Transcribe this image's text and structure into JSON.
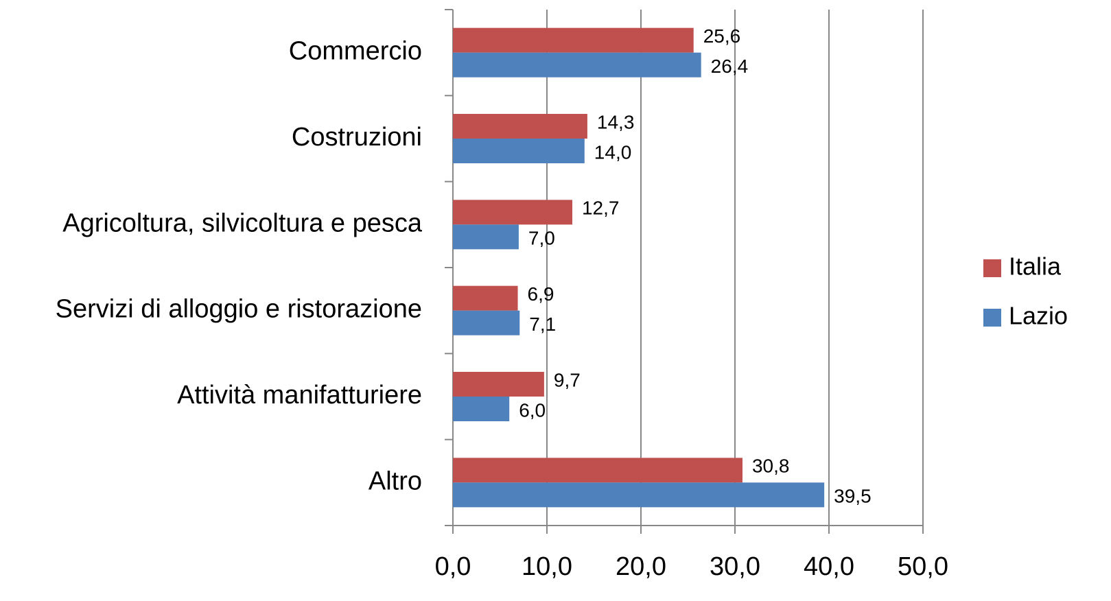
{
  "chart_data": {
    "type": "bar",
    "orientation": "horizontal",
    "categories": [
      "Commercio",
      "Costruzioni",
      "Agricoltura, silvicoltura e pesca",
      "Servizi di alloggio e ristorazione",
      "Attività manifatturiere",
      "Altro"
    ],
    "series": [
      {
        "name": "Italia",
        "color": "#c0504d",
        "values": [
          25.6,
          14.3,
          12.7,
          6.9,
          9.7,
          30.8
        ],
        "value_labels": [
          "25,6",
          "14,3",
          "12,7",
          "6,9",
          "9,7",
          "30,8"
        ]
      },
      {
        "name": "Lazio",
        "color": "#4f81bd",
        "values": [
          26.4,
          14.0,
          7.0,
          7.1,
          6.0,
          39.5
        ],
        "value_labels": [
          "26,4",
          "14,0",
          "7,0",
          "7,1",
          "6,0",
          "39,5"
        ]
      }
    ],
    "xlim": [
      0,
      50
    ],
    "xticks": [
      {
        "value": 0,
        "label": "0,0"
      },
      {
        "value": 10,
        "label": "10,0"
      },
      {
        "value": 20,
        "label": "20,0"
      },
      {
        "value": 30,
        "label": "30,0"
      },
      {
        "value": 40,
        "label": "40,0"
      },
      {
        "value": 50,
        "label": "50,0"
      }
    ],
    "grid": true,
    "legend": "right"
  }
}
